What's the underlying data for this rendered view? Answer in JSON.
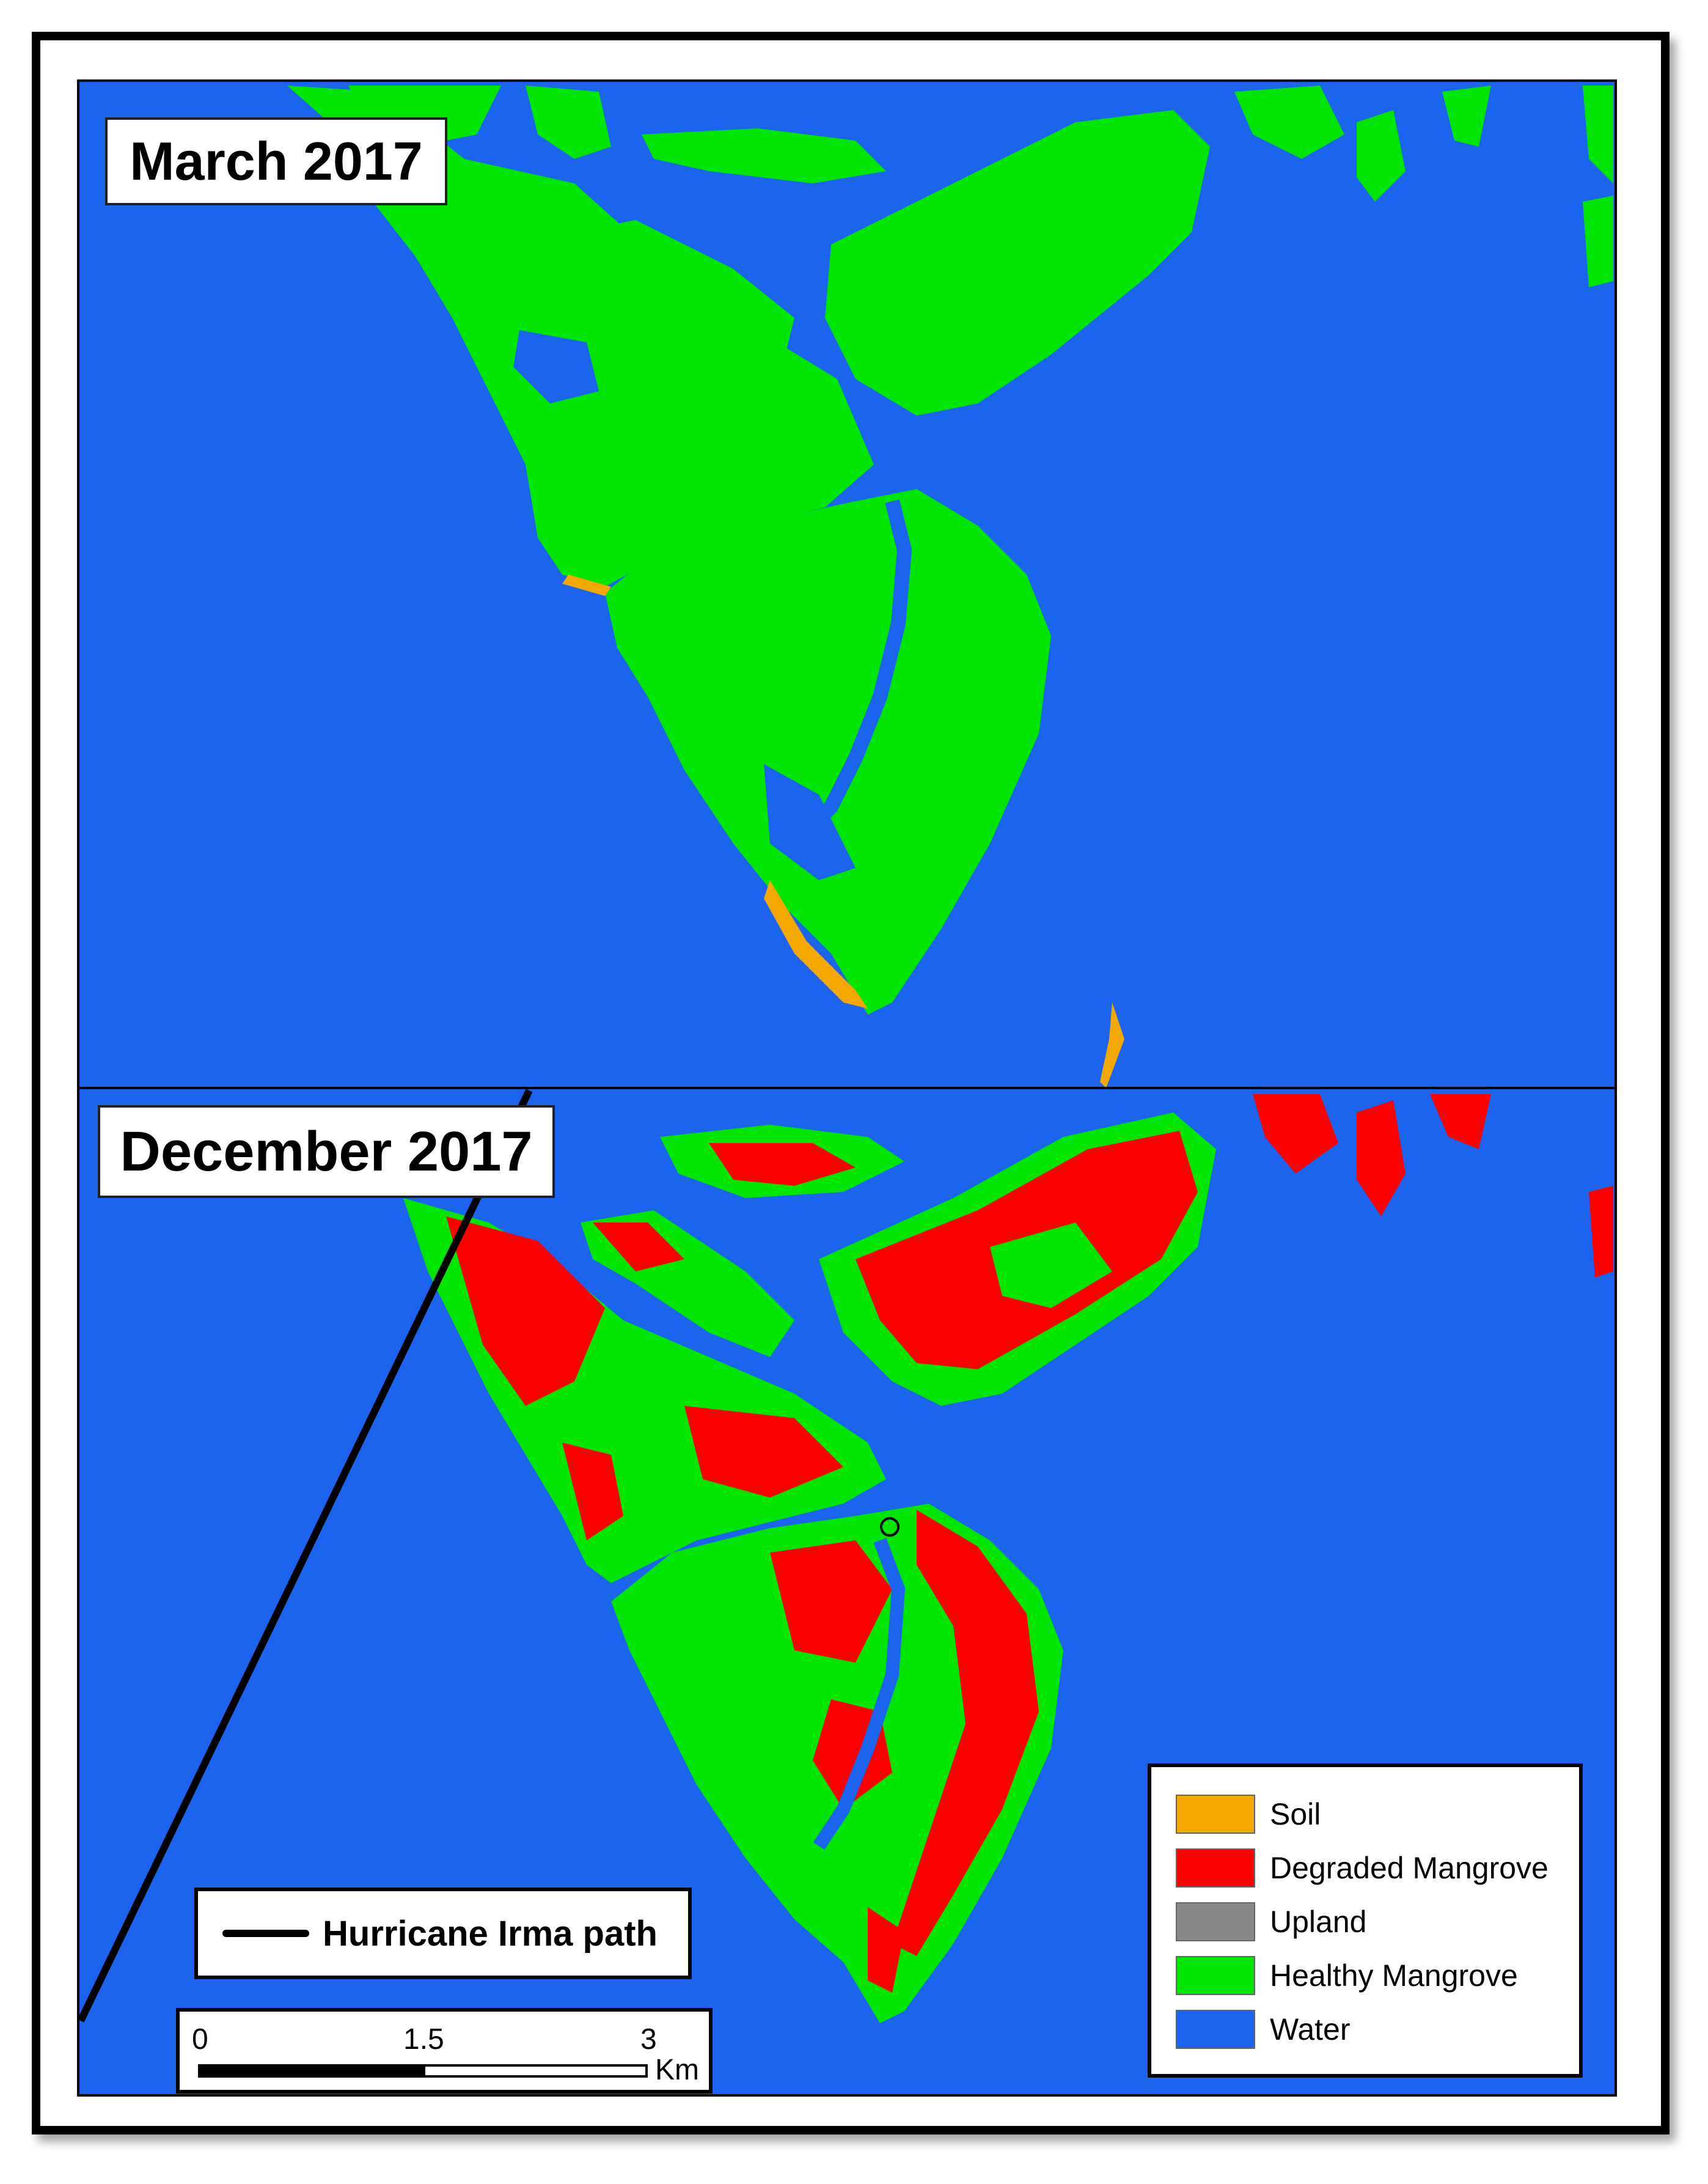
{
  "panels": [
    {
      "title": "March 2017"
    },
    {
      "title": "December 2017"
    }
  ],
  "legend": {
    "items": [
      {
        "label": "Soil",
        "color": "#f5a800"
      },
      {
        "label": "Degraded Mangrove",
        "color": "#ff0000"
      },
      {
        "label": "Upland",
        "color": "#888888"
      },
      {
        "label": "Healthy Mangrove",
        "color": "#00e600"
      },
      {
        "label": "Water",
        "color": "#1a64f0"
      }
    ]
  },
  "hurricane": {
    "label": "Hurricane Irma path"
  },
  "scalebar": {
    "ticks": [
      "0",
      "1.5",
      "3"
    ],
    "unit": "Km"
  },
  "colors": {
    "water": "#1a64f0",
    "healthy": "#00e600",
    "degraded": "#ff0000",
    "soil": "#f5a800",
    "upland": "#888888"
  }
}
